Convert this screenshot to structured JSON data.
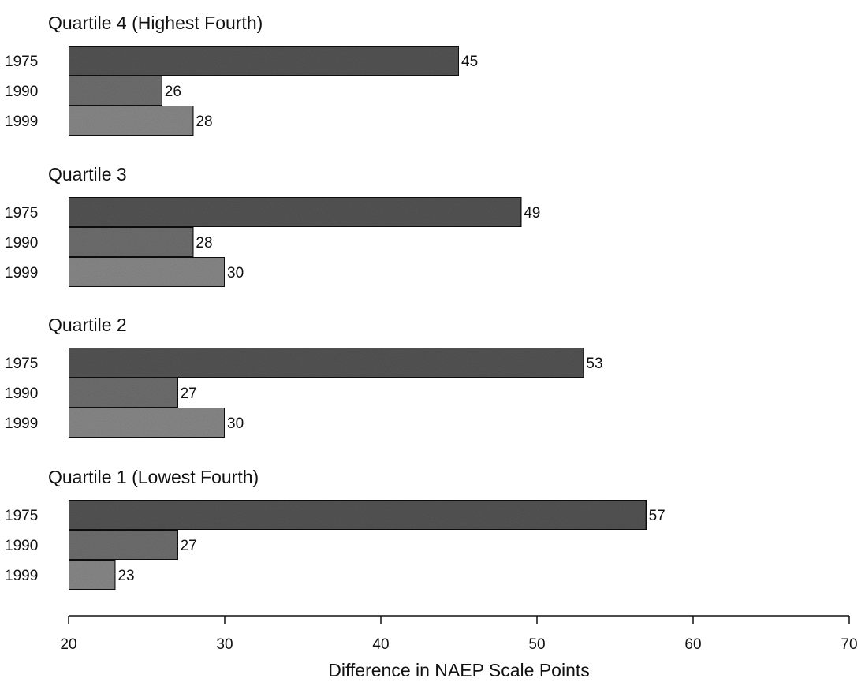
{
  "chart_data": {
    "type": "bar",
    "orientation": "horizontal",
    "xlabel": "Difference in NAEP Scale Points",
    "xlim": [
      20,
      70
    ],
    "xticks": [
      20,
      30,
      40,
      50,
      60,
      70
    ],
    "grid": false,
    "bar_colors": {
      "1975": "#555555",
      "1990": "#707070",
      "1999": "#8a8a8a"
    },
    "panels": [
      {
        "title": "Quartile 4 (Highest Fourth)",
        "categories": [
          "1975",
          "1990",
          "1999"
        ],
        "values": [
          45,
          26,
          28
        ]
      },
      {
        "title": "Quartile 3",
        "categories": [
          "1975",
          "1990",
          "1999"
        ],
        "values": [
          49,
          28,
          30
        ]
      },
      {
        "title": "Quartile 2",
        "categories": [
          "1975",
          "1990",
          "1999"
        ],
        "values": [
          53,
          27,
          30
        ]
      },
      {
        "title": "Quartile 1 (Lowest Fourth)",
        "categories": [
          "1975",
          "1990",
          "1999"
        ],
        "values": [
          57,
          27,
          23
        ]
      }
    ]
  }
}
